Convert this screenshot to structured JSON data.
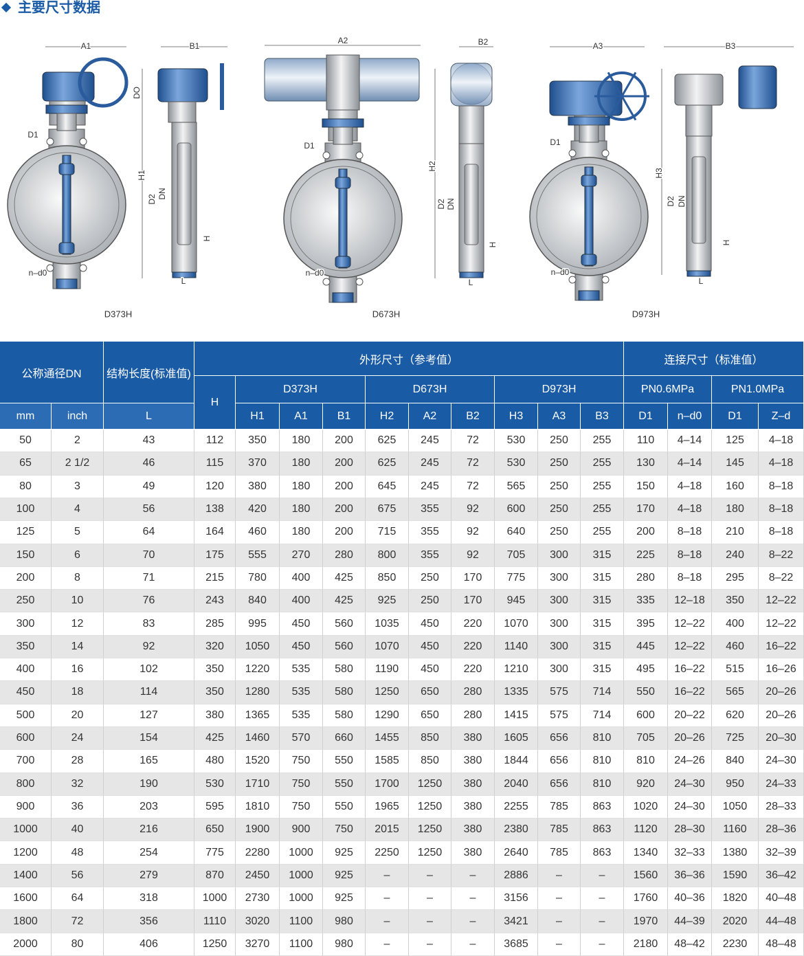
{
  "title": "主要尺寸数据",
  "drawings": [
    {
      "caption": "D373H",
      "labels": [
        "A1",
        "B1",
        "DO",
        "D1",
        "H1",
        "D2",
        "DN",
        "H",
        "L",
        "n–d0"
      ]
    },
    {
      "caption": "D673H",
      "labels": [
        "A2",
        "B2",
        "D1",
        "H2",
        "D2",
        "DN",
        "H",
        "L",
        "n–d0"
      ]
    },
    {
      "caption": "D973H",
      "labels": [
        "A3",
        "B3",
        "D1",
        "H3",
        "D2",
        "DN",
        "H",
        "L",
        "n–d0"
      ]
    }
  ],
  "table": {
    "headers": {
      "dn": "公称通径DN",
      "length": "结构长度(标准值)",
      "shape": "外形尺寸（参考值）",
      "connect": "连接尺寸（标准值）",
      "h": "H",
      "models": [
        "D373H",
        "D673H",
        "D973H"
      ],
      "pressures": [
        "PN0.6MPa",
        "PN1.0MPa"
      ],
      "columns": [
        "mm",
        "inch",
        "L",
        "H1",
        "A1",
        "B1",
        "H2",
        "A2",
        "B2",
        "H3",
        "A3",
        "B3",
        "D1",
        "n–d0",
        "D1",
        "Z–d"
      ]
    },
    "rows": [
      [
        50,
        2,
        43,
        112,
        350,
        180,
        200,
        625,
        245,
        72,
        530,
        250,
        255,
        110,
        "4–14",
        125,
        "4–18"
      ],
      [
        65,
        "2 1/2",
        46,
        115,
        370,
        180,
        200,
        625,
        245,
        72,
        530,
        250,
        255,
        130,
        "4–14",
        145,
        "4–18"
      ],
      [
        80,
        3,
        49,
        120,
        380,
        180,
        200,
        645,
        245,
        72,
        565,
        250,
        255,
        150,
        "4–18",
        160,
        "8–18"
      ],
      [
        100,
        4,
        56,
        138,
        420,
        180,
        200,
        675,
        355,
        92,
        600,
        250,
        255,
        170,
        "4–18",
        180,
        "8–18"
      ],
      [
        125,
        5,
        64,
        164,
        460,
        180,
        200,
        715,
        355,
        92,
        640,
        250,
        255,
        200,
        "8–18",
        210,
        "8–18"
      ],
      [
        150,
        6,
        70,
        175,
        555,
        270,
        280,
        800,
        355,
        92,
        705,
        300,
        315,
        225,
        "8–18",
        240,
        "8–22"
      ],
      [
        200,
        8,
        71,
        215,
        780,
        400,
        425,
        850,
        250,
        170,
        775,
        300,
        315,
        280,
        "8–18",
        295,
        "8–22"
      ],
      [
        250,
        10,
        76,
        243,
        840,
        400,
        425,
        925,
        250,
        170,
        945,
        300,
        315,
        335,
        "12–18",
        350,
        "12–22"
      ],
      [
        300,
        12,
        83,
        285,
        995,
        450,
        560,
        1035,
        450,
        220,
        1070,
        300,
        315,
        395,
        "12–22",
        400,
        "12–22"
      ],
      [
        350,
        14,
        92,
        320,
        1050,
        450,
        560,
        1070,
        450,
        220,
        1140,
        300,
        315,
        445,
        "12–22",
        460,
        "16–22"
      ],
      [
        400,
        16,
        102,
        350,
        1220,
        535,
        580,
        1190,
        450,
        220,
        1210,
        300,
        315,
        495,
        "16–22",
        515,
        "16–26"
      ],
      [
        450,
        18,
        114,
        350,
        1280,
        535,
        580,
        1250,
        650,
        280,
        1335,
        575,
        714,
        550,
        "16–22",
        565,
        "20–26"
      ],
      [
        500,
        20,
        127,
        380,
        1365,
        535,
        580,
        1290,
        650,
        280,
        1415,
        575,
        714,
        600,
        "20–22",
        620,
        "20–26"
      ],
      [
        600,
        24,
        154,
        425,
        1460,
        570,
        660,
        1455,
        850,
        380,
        1605,
        656,
        810,
        705,
        "20–26",
        725,
        "20–30"
      ],
      [
        700,
        28,
        165,
        480,
        1520,
        750,
        550,
        1585,
        850,
        380,
        1844,
        656,
        810,
        810,
        "24–26",
        840,
        "24–30"
      ],
      [
        800,
        32,
        190,
        530,
        1710,
        750,
        550,
        1700,
        1250,
        380,
        2040,
        656,
        810,
        920,
        "24–30",
        950,
        "24–33"
      ],
      [
        900,
        36,
        203,
        595,
        1810,
        750,
        550,
        1965,
        1250,
        380,
        2255,
        785,
        863,
        1020,
        "24–30",
        1050,
        "28–33"
      ],
      [
        1000,
        40,
        216,
        650,
        1900,
        900,
        750,
        2015,
        1250,
        380,
        2380,
        785,
        863,
        1120,
        "28–30",
        1160,
        "28–36"
      ],
      [
        1200,
        48,
        254,
        775,
        2280,
        1000,
        925,
        2250,
        1250,
        380,
        2640,
        785,
        863,
        1340,
        "32–33",
        1380,
        "32–39"
      ],
      [
        1400,
        56,
        279,
        870,
        2450,
        1000,
        925,
        "–",
        "–",
        "–",
        2886,
        "–",
        "–",
        1560,
        "36–36",
        1590,
        "36–42"
      ],
      [
        1600,
        64,
        318,
        1000,
        2730,
        1000,
        925,
        "–",
        "–",
        "–",
        3156,
        "–",
        "–",
        1760,
        "40–36",
        1820,
        "40–48"
      ],
      [
        1800,
        72,
        356,
        1110,
        3020,
        1100,
        980,
        "–",
        "–",
        "–",
        3421,
        "–",
        "–",
        1970,
        "44–39",
        2020,
        "44–48"
      ],
      [
        2000,
        80,
        406,
        1250,
        3270,
        1100,
        980,
        "–",
        "–",
        "–",
        3685,
        "–",
        "–",
        2180,
        "48–42",
        2230,
        "48–48"
      ]
    ]
  }
}
